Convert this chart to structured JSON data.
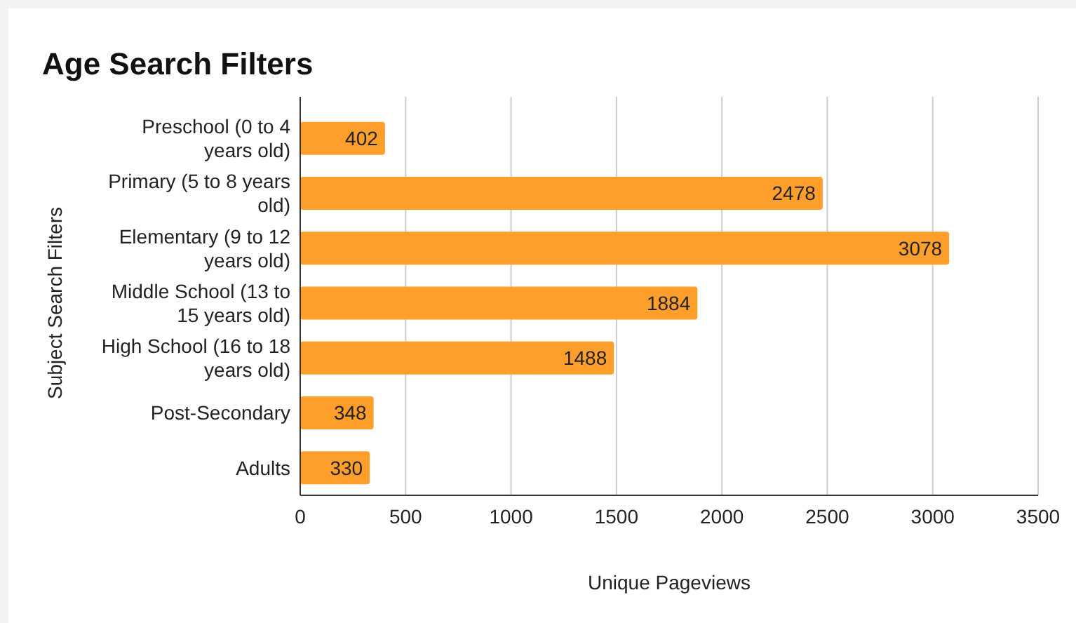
{
  "chart_data": {
    "type": "bar",
    "orientation": "horizontal",
    "title": "Age Search Filters",
    "xlabel": "Unique Pageviews",
    "ylabel": "Subject Search Filters",
    "categories": [
      "Preschool (0 to 4 years old)",
      "Primary (5 to 8 years old)",
      "Elementary (9 to 12 years old)",
      "Middle School (13 to 15 years old)",
      "High School (16 to 18 years old)",
      "Post-Secondary",
      "Adults"
    ],
    "values": [
      402,
      2478,
      3078,
      1884,
      1488,
      348,
      330
    ],
    "color": "#ff9f2b",
    "xlim": [
      0,
      3500
    ],
    "xticks": [
      0,
      500,
      1000,
      1500,
      2000,
      2500,
      3000,
      3500
    ],
    "grid": "x",
    "data_labels": true
  }
}
